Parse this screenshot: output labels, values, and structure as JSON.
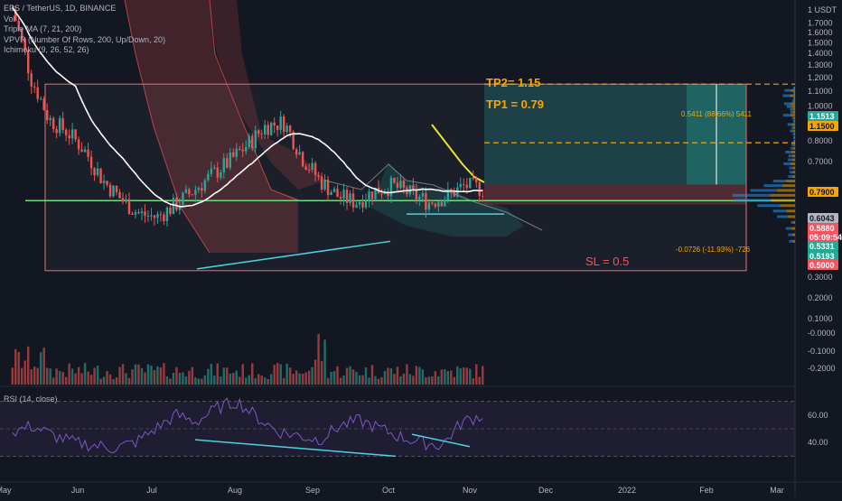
{
  "legend": {
    "symbol": "EPS / TetherUS, 1D, BINANCE",
    "vol": "Vol",
    "triple_ma": "Triple MA (7, 21, 200)",
    "vpvr": "VPVR (Number Of Rows, 200, Up/Down, 20)",
    "ichimoku": "Ichimoku (9, 26, 52, 26)"
  },
  "rsi_legend": "RSI (14, close)",
  "annotations": {
    "tp2": "TP2= 1.15",
    "tp1": "TP1 = 0.79",
    "sl": "SL = 0.5",
    "long_target": "0.5411 (88.66%) 5411",
    "long_stop": "-0.0726 (-11.93%) -726"
  },
  "colors": {
    "background": "#131722",
    "up": "#26a69a",
    "down": "#ef5350",
    "orange": "#f7a600",
    "cyan": "#4dd0e1",
    "yellow": "#e5e52e",
    "green_line": "#6fdc7a",
    "rsi_line": "#7e57c2"
  },
  "price_tags": [
    {
      "label": "1.1513",
      "bg": "#22ab94",
      "color": "#ffffff"
    },
    {
      "label": "1.1500",
      "bg": "#f7a600",
      "color": "#131722"
    },
    {
      "label": "0.7900",
      "bg": "#f7a600",
      "color": "#131722"
    },
    {
      "label": "0.6043",
      "bg": "#b2b5be",
      "color": "#131722"
    },
    {
      "label": "0.5880",
      "bg": "#f7525f",
      "color": "#ffffff"
    },
    {
      "label": "05:09:54",
      "bg": "#f7525f",
      "color": "#ffffff"
    },
    {
      "label": "0.5331",
      "bg": "#22ab94",
      "color": "#ffffff"
    },
    {
      "label": "0.5193",
      "bg": "#22ab94",
      "color": "#ffffff"
    },
    {
      "label": "0.5000",
      "bg": "#f7525f",
      "color": "#ffffff"
    }
  ],
  "chart_data": [
    {
      "type": "candlestick",
      "title": "EPS / TetherUS, 1D, BINANCE",
      "y_axis": {
        "scale": "log",
        "unit": "USDT",
        "ticks": [
          "1 USDT",
          "1.7000",
          "1.6000",
          "1.5000",
          "1.4000",
          "1.3000",
          "1.2000",
          "1.1000",
          "1.0000",
          "0.9000",
          "0.8000",
          "0.7000"
        ]
      },
      "x_axis": {
        "ticks": [
          "May",
          "Jun",
          "Jul",
          "Aug",
          "Sep",
          "Oct",
          "Nov",
          "Dec",
          "2022",
          "Feb",
          "Mar"
        ]
      },
      "series_close_approx": [
        1.85,
        1.2,
        0.92,
        0.85,
        0.75,
        0.62,
        0.55,
        0.5,
        0.49,
        0.53,
        0.58,
        0.64,
        0.7,
        0.78,
        0.88,
        0.9,
        0.72,
        0.62,
        0.56,
        0.54,
        0.58,
        0.6,
        0.57,
        0.54,
        0.56,
        0.6,
        0.588
      ],
      "levels": {
        "tp2": 1.15,
        "tp1": 0.79,
        "sl": 0.5,
        "entry": 0.6043,
        "current": 0.588
      }
    },
    {
      "type": "bar",
      "title": "Vol",
      "y_axis": {
        "ticks": [
          "0.3000",
          "0.2000",
          "0.1000",
          "-0.0000",
          "-0.1000",
          "-0.2000"
        ]
      }
    },
    {
      "type": "line",
      "title": "RSI (14, close)",
      "y_axis": {
        "ticks": [
          "60.00",
          "40.00"
        ]
      },
      "values_approx": [
        48,
        52,
        45,
        40,
        38,
        36,
        40,
        50,
        60,
        55,
        65,
        70,
        58,
        48,
        45,
        42,
        52,
        56,
        50,
        44,
        40,
        38,
        55,
        60
      ],
      "ylim": [
        25,
        75
      ]
    }
  ]
}
